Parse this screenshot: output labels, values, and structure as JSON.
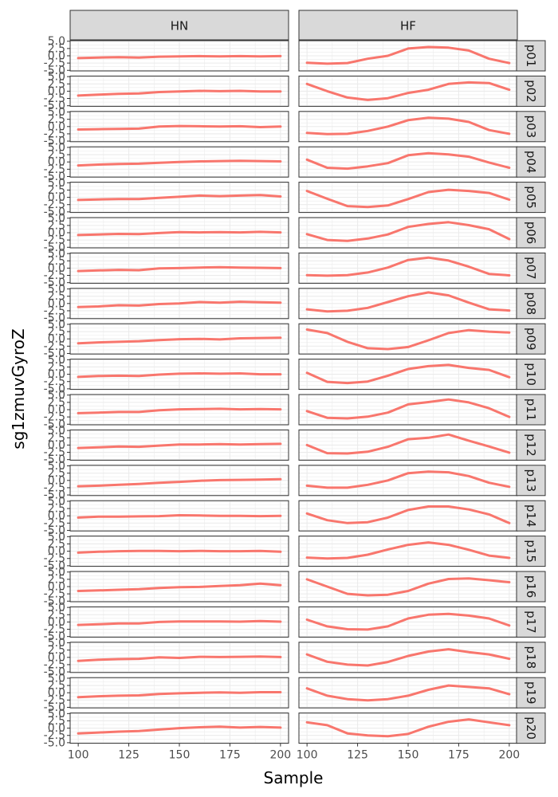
{
  "chart_data": {
    "type": "line",
    "facet_columns": [
      "HN",
      "HF"
    ],
    "facet_rows": [
      "p01",
      "p02",
      "p03",
      "p04",
      "p05",
      "p06",
      "p07",
      "p08",
      "p09",
      "p10",
      "p11",
      "p12",
      "p13",
      "p14",
      "p15",
      "p16",
      "p17",
      "p18",
      "p19",
      "p20"
    ],
    "xlabel": "Sample",
    "ylabel": "sg1zmuvGyroZ",
    "x_ticks": [
      "100",
      "125",
      "150",
      "175",
      "200"
    ],
    "y_ticks": [
      "-5.0",
      "-2.5",
      "0.0",
      "2.5",
      "5.0"
    ],
    "xlim": [
      96,
      204
    ],
    "ylim": [
      -5.2,
      5.2
    ],
    "line_color": "#F8766D",
    "panel_background": "#FFFFFF",
    "grid_color": "#EBEBEB",
    "strip_background": "#D9D9D9",
    "x": [
      100,
      110,
      120,
      130,
      140,
      150,
      160,
      170,
      180,
      190,
      200
    ],
    "series": [
      {
        "row": "p01",
        "col": "HN",
        "values": [
          -0.8,
          -0.6,
          -0.5,
          -0.6,
          -0.3,
          -0.2,
          -0.1,
          -0.2,
          -0.1,
          -0.2,
          -0.1
        ]
      },
      {
        "row": "p01",
        "col": "HF",
        "values": [
          -2.4,
          -2.7,
          -2.5,
          -1.0,
          0.0,
          2.5,
          3.0,
          2.8,
          1.8,
          -1.0,
          -2.5
        ]
      },
      {
        "row": "p02",
        "col": "HN",
        "values": [
          -1.5,
          -1.2,
          -0.9,
          -0.8,
          -0.3,
          -0.1,
          0.1,
          0.0,
          0.1,
          -0.1,
          -0.1
        ]
      },
      {
        "row": "p02",
        "col": "HF",
        "values": [
          2.5,
          0.0,
          -2.2,
          -3.0,
          -2.4,
          -0.6,
          0.5,
          2.5,
          3.0,
          2.8,
          0.5
        ]
      },
      {
        "row": "p03",
        "col": "HN",
        "values": [
          -1.0,
          -0.9,
          -0.8,
          -0.7,
          0.0,
          0.2,
          0.1,
          0.0,
          0.1,
          -0.2,
          0.0
        ]
      },
      {
        "row": "p03",
        "col": "HF",
        "values": [
          -2.2,
          -2.6,
          -2.5,
          -1.5,
          0.0,
          2.2,
          3.0,
          2.7,
          1.6,
          -1.2,
          -2.5
        ]
      },
      {
        "row": "p04",
        "col": "HN",
        "values": [
          -1.2,
          -0.9,
          -0.7,
          -0.6,
          -0.3,
          0.0,
          0.2,
          0.3,
          0.4,
          0.3,
          0.2
        ]
      },
      {
        "row": "p04",
        "col": "HF",
        "values": [
          0.8,
          -2.0,
          -2.3,
          -1.5,
          -0.4,
          2.3,
          3.0,
          2.6,
          1.8,
          -0.2,
          -2.0
        ]
      },
      {
        "row": "p05",
        "col": "HN",
        "values": [
          -0.9,
          -0.7,
          -0.6,
          -0.6,
          -0.2,
          0.2,
          0.6,
          0.4,
          0.6,
          0.8,
          0.3
        ]
      },
      {
        "row": "p05",
        "col": "HF",
        "values": [
          2.2,
          -0.5,
          -3.0,
          -3.3,
          -2.8,
          -0.6,
          1.8,
          2.6,
          2.2,
          1.5,
          -0.8
        ]
      },
      {
        "row": "p06",
        "col": "HN",
        "values": [
          -0.8,
          -0.6,
          -0.4,
          -0.5,
          -0.1,
          0.2,
          0.1,
          0.2,
          0.1,
          0.3,
          0.1
        ]
      },
      {
        "row": "p06",
        "col": "HF",
        "values": [
          -0.5,
          -2.5,
          -2.8,
          -2.0,
          -0.6,
          2.0,
          3.0,
          3.6,
          2.6,
          1.2,
          -2.2
        ]
      },
      {
        "row": "p07",
        "col": "HN",
        "values": [
          -1.0,
          -0.8,
          -0.6,
          -0.7,
          -0.1,
          0.0,
          0.2,
          0.3,
          0.2,
          0.1,
          0.0
        ]
      },
      {
        "row": "p07",
        "col": "HF",
        "values": [
          -2.4,
          -2.6,
          -2.4,
          -1.5,
          0.2,
          2.8,
          3.6,
          2.6,
          0.5,
          -2.0,
          -2.5
        ]
      },
      {
        "row": "p08",
        "col": "HN",
        "values": [
          -1.2,
          -1.0,
          -0.6,
          -0.7,
          -0.2,
          0.0,
          0.5,
          0.3,
          0.6,
          0.4,
          0.3
        ]
      },
      {
        "row": "p08",
        "col": "HF",
        "values": [
          -2.0,
          -2.7,
          -2.5,
          -1.5,
          0.5,
          2.5,
          3.8,
          2.8,
          0.3,
          -2.0,
          -2.4
        ]
      },
      {
        "row": "p09",
        "col": "HN",
        "values": [
          -1.5,
          -1.2,
          -1.0,
          -0.8,
          -0.4,
          -0.1,
          0.0,
          -0.2,
          0.2,
          0.3,
          0.4
        ]
      },
      {
        "row": "p09",
        "col": "HF",
        "values": [
          3.2,
          2.0,
          -1.0,
          -3.2,
          -3.5,
          -2.8,
          -0.5,
          2.0,
          3.0,
          2.5,
          2.2
        ]
      },
      {
        "row": "p10",
        "col": "HN",
        "values": [
          -0.9,
          -0.6,
          -0.5,
          -0.6,
          -0.1,
          0.2,
          0.3,
          0.2,
          0.3,
          0.0,
          0.0
        ]
      },
      {
        "row": "p10",
        "col": "HF",
        "values": [
          0.5,
          -2.6,
          -3.0,
          -2.5,
          -0.5,
          1.8,
          2.8,
          3.2,
          2.2,
          1.5,
          -1.0
        ]
      },
      {
        "row": "p11",
        "col": "HN",
        "values": [
          -1.2,
          -1.0,
          -0.8,
          -0.8,
          -0.2,
          0.1,
          0.2,
          0.3,
          0.1,
          0.2,
          0.1
        ]
      },
      {
        "row": "p11",
        "col": "HF",
        "values": [
          -0.5,
          -2.8,
          -3.0,
          -2.4,
          -1.0,
          1.8,
          2.6,
          3.5,
          2.5,
          0.5,
          -2.5
        ]
      },
      {
        "row": "p12",
        "col": "HN",
        "values": [
          -1.0,
          -0.8,
          -0.5,
          -0.6,
          -0.2,
          0.2,
          0.2,
          0.3,
          0.2,
          0.3,
          0.4
        ]
      },
      {
        "row": "p12",
        "col": "HF",
        "values": [
          0.0,
          -2.8,
          -2.9,
          -2.3,
          -0.6,
          2.0,
          2.5,
          3.6,
          1.5,
          -0.5,
          -2.6
        ]
      },
      {
        "row": "p13",
        "col": "HN",
        "values": [
          -2.0,
          -1.8,
          -1.5,
          -1.2,
          -0.8,
          -0.5,
          -0.1,
          0.1,
          0.2,
          0.3,
          0.4
        ]
      },
      {
        "row": "p13",
        "col": "HF",
        "values": [
          -1.8,
          -2.5,
          -2.5,
          -1.5,
          0.0,
          2.5,
          3.0,
          2.8,
          1.5,
          -0.8,
          -2.2
        ]
      },
      {
        "row": "p14",
        "col": "HN",
        "values": [
          -0.6,
          -0.3,
          -0.3,
          -0.2,
          -0.1,
          0.2,
          0.1,
          0.0,
          0.0,
          -0.1,
          0.0
        ]
      },
      {
        "row": "p14",
        "col": "HF",
        "values": [
          0.8,
          -1.5,
          -2.5,
          -2.2,
          -0.6,
          2.0,
          3.2,
          3.2,
          2.2,
          0.5,
          -2.5
        ]
      },
      {
        "row": "p15",
        "col": "HN",
        "values": [
          -0.5,
          -0.2,
          0.0,
          0.1,
          0.1,
          0.0,
          0.1,
          0.0,
          0.0,
          0.1,
          -0.2
        ]
      },
      {
        "row": "p15",
        "col": "HF",
        "values": [
          -2.2,
          -2.5,
          -2.3,
          -1.2,
          0.6,
          2.2,
          3.0,
          2.2,
          0.5,
          -1.5,
          -2.3
        ]
      },
      {
        "row": "p16",
        "col": "HN",
        "values": [
          -1.5,
          -1.3,
          -1.1,
          -0.9,
          -0.5,
          -0.2,
          -0.1,
          0.2,
          0.5,
          1.0,
          0.5
        ]
      },
      {
        "row": "p16",
        "col": "HF",
        "values": [
          2.5,
          0.0,
          -2.5,
          -3.0,
          -2.8,
          -1.5,
          1.0,
          2.6,
          2.8,
          2.2,
          1.5
        ]
      },
      {
        "row": "p17",
        "col": "HN",
        "values": [
          -1.0,
          -0.8,
          -0.5,
          -0.5,
          0.0,
          0.2,
          0.2,
          0.2,
          0.1,
          0.3,
          0.1
        ]
      },
      {
        "row": "p17",
        "col": "HF",
        "values": [
          0.8,
          -1.5,
          -2.5,
          -2.6,
          -1.5,
          1.2,
          2.5,
          2.8,
          2.2,
          1.2,
          -1.2
        ]
      },
      {
        "row": "p18",
        "col": "HN",
        "values": [
          -1.2,
          -0.8,
          -0.6,
          -0.5,
          0.0,
          -0.2,
          0.2,
          0.1,
          0.2,
          0.3,
          0.1
        ]
      },
      {
        "row": "p18",
        "col": "HF",
        "values": [
          1.0,
          -1.5,
          -2.5,
          -2.8,
          -1.6,
          0.5,
          2.0,
          2.8,
          1.8,
          1.0,
          -0.5
        ]
      },
      {
        "row": "p19",
        "col": "HN",
        "values": [
          -1.5,
          -1.2,
          -1.0,
          -0.9,
          -0.4,
          -0.2,
          0.0,
          0.1,
          0.0,
          0.2,
          0.2
        ]
      },
      {
        "row": "p19",
        "col": "HF",
        "values": [
          1.5,
          -1.0,
          -2.2,
          -2.6,
          -2.2,
          -1.0,
          1.0,
          2.5,
          2.0,
          1.5,
          -0.5
        ]
      },
      {
        "row": "p20",
        "col": "HN",
        "values": [
          -1.8,
          -1.5,
          -1.2,
          -1.0,
          -0.5,
          0.0,
          0.3,
          0.5,
          0.2,
          0.4,
          0.2
        ]
      },
      {
        "row": "p20",
        "col": "HF",
        "values": [
          2.0,
          1.0,
          -1.8,
          -2.5,
          -2.8,
          -2.0,
          0.5,
          2.2,
          3.0,
          2.0,
          1.0
        ]
      }
    ]
  }
}
